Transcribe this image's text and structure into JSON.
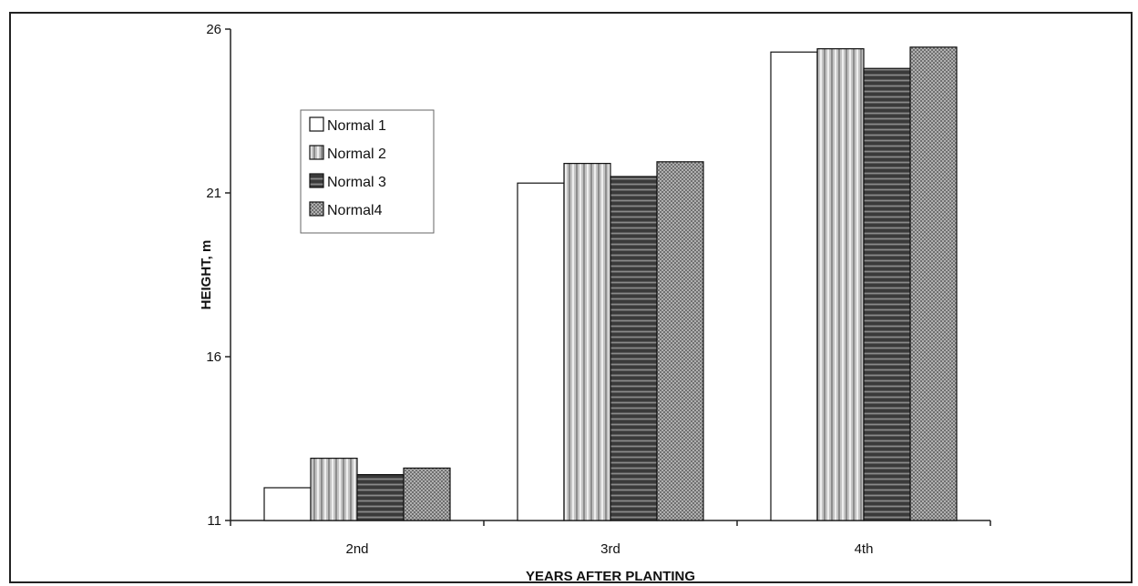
{
  "caption": "",
  "chart_data": {
    "type": "bar",
    "title": "",
    "xlabel": "YEARS AFTER PLANTING",
    "ylabel": "HEIGHT, m",
    "categories": [
      "2nd",
      "3rd",
      "4th"
    ],
    "ylim": [
      11,
      26
    ],
    "yticks": [
      11,
      16,
      21,
      26
    ],
    "grid": false,
    "legend_position": "top-left",
    "series": [
      {
        "name": "Normal 1",
        "values": [
          12.0,
          21.3,
          25.3
        ],
        "pattern": "white"
      },
      {
        "name": "Normal 2",
        "values": [
          12.9,
          21.9,
          25.4
        ],
        "pattern": "vertical-stripes"
      },
      {
        "name": "Normal 3",
        "values": [
          12.4,
          21.5,
          24.8
        ],
        "pattern": "horizontal-stripes"
      },
      {
        "name": "Normal4",
        "values": [
          12.6,
          21.95,
          25.45
        ],
        "pattern": "crosshatch"
      }
    ]
  }
}
